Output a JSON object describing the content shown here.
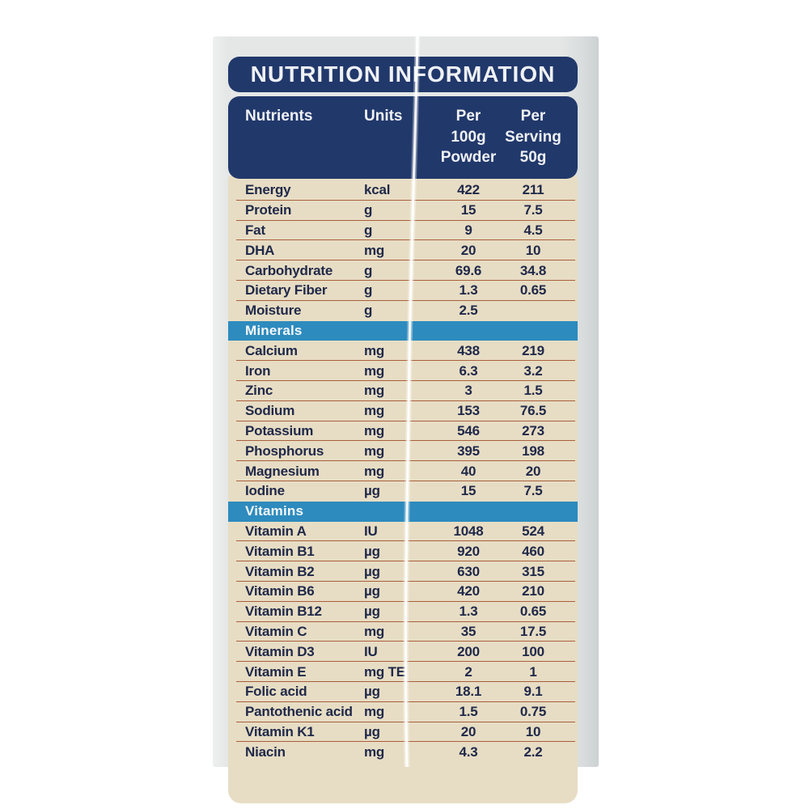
{
  "label": {
    "title": "NUTRITION INFORMATION",
    "columns": {
      "nutrients": "Nutrients",
      "units": "Units",
      "per_100g": "Per\n100g\nPowder",
      "per_serving": "Per\nServing\n50g"
    },
    "table": {
      "sections": [
        {
          "header": null,
          "rows": [
            {
              "name": "Energy",
              "unit": "kcal",
              "per100": "422",
              "serving": "211"
            },
            {
              "name": "Protein",
              "unit": "g",
              "per100": "15",
              "serving": "7.5"
            },
            {
              "name": "Fat",
              "unit": "g",
              "per100": "9",
              "serving": "4.5"
            },
            {
              "name": "DHA",
              "unit": "mg",
              "per100": "20",
              "serving": "10"
            },
            {
              "name": "Carbohydrate",
              "unit": "g",
              "per100": "69.6",
              "serving": "34.8"
            },
            {
              "name": "Dietary Fiber",
              "unit": "g",
              "per100": "1.3",
              "serving": "0.65"
            },
            {
              "name": "Moisture",
              "unit": "g",
              "per100": "2.5",
              "serving": ""
            }
          ]
        },
        {
          "header": "Minerals",
          "rows": [
            {
              "name": "Calcium",
              "unit": "mg",
              "per100": "438",
              "serving": "219"
            },
            {
              "name": "Iron",
              "unit": "mg",
              "per100": "6.3",
              "serving": "3.2"
            },
            {
              "name": "Zinc",
              "unit": "mg",
              "per100": "3",
              "serving": "1.5"
            },
            {
              "name": "Sodium",
              "unit": "mg",
              "per100": "153",
              "serving": "76.5"
            },
            {
              "name": "Potassium",
              "unit": "mg",
              "per100": "546",
              "serving": "273"
            },
            {
              "name": "Phosphorus",
              "unit": "mg",
              "per100": "395",
              "serving": "198"
            },
            {
              "name": "Magnesium",
              "unit": "mg",
              "per100": "40",
              "serving": "20"
            },
            {
              "name": "Iodine",
              "unit": "µg",
              "per100": "15",
              "serving": "7.5"
            }
          ]
        },
        {
          "header": "Vitamins",
          "rows": [
            {
              "name": "Vitamin A",
              "unit": "IU",
              "per100": "1048",
              "serving": "524"
            },
            {
              "name": "Vitamin B1",
              "unit": "µg",
              "per100": "920",
              "serving": "460"
            },
            {
              "name": "Vitamin B2",
              "unit": "µg",
              "per100": "630",
              "serving": "315"
            },
            {
              "name": "Vitamin B6",
              "unit": "µg",
              "per100": "420",
              "serving": "210"
            },
            {
              "name": "Vitamin B12",
              "unit": "µg",
              "per100": "1.3",
              "serving": "0.65"
            },
            {
              "name": "Vitamin C",
              "unit": "mg",
              "per100": "35",
              "serving": "17.5"
            },
            {
              "name": "Vitamin D3",
              "unit": "IU",
              "per100": "200",
              "serving": "100"
            },
            {
              "name": "Vitamin E",
              "unit": "mg TE",
              "per100": "2",
              "serving": "1"
            },
            {
              "name": "Folic acid",
              "unit": "µg",
              "per100": "18.1",
              "serving": "9.1"
            },
            {
              "name": "Pantothenic acid",
              "unit": "mg",
              "per100": "1.5",
              "serving": "0.75"
            },
            {
              "name": "Vitamin K1",
              "unit": "µg",
              "per100": "20",
              "serving": "10"
            },
            {
              "name": "Niacin",
              "unit": "mg",
              "per100": "4.3",
              "serving": "2.2"
            }
          ]
        }
      ]
    },
    "colors": {
      "header_navy": "#21386b",
      "section_band_blue": "#2d8bbe",
      "table_beige": "#e7ddc4",
      "divider_sienna": "#a2512e",
      "row_text": "#20294a",
      "header_text": "#eff1f4",
      "photo_strip_gray": "#e4e7e6"
    }
  }
}
